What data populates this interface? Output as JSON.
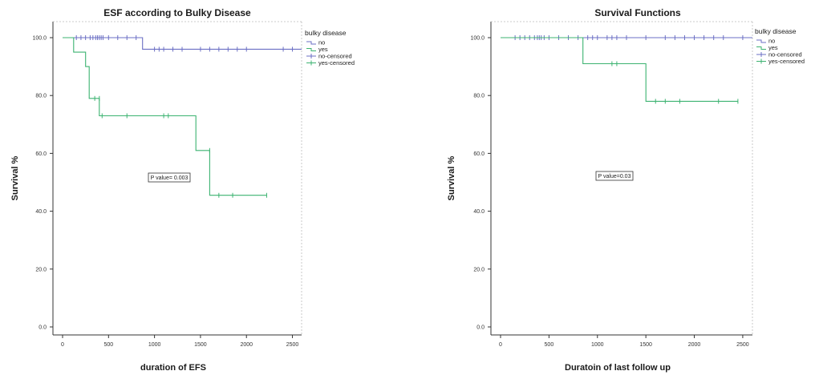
{
  "chart_data": [
    {
      "type": "line",
      "title": "ESF according to Bulky Disease",
      "xlabel": "duration of EFS",
      "ylabel": "Survival %",
      "xlim": [
        0,
        2600
      ],
      "ylim": [
        0,
        100
      ],
      "x_ticks": [
        0,
        500,
        1000,
        1500,
        2000,
        2500
      ],
      "y_ticks": [
        0,
        20,
        40,
        60,
        80,
        100
      ],
      "y_tick_labels": [
        "0.0",
        "20.0",
        "40.0",
        "60.0",
        "80.0",
        "100.0"
      ],
      "legend_title": "bulky disease",
      "legend_placement": "right",
      "legend": [
        "no",
        "yes",
        "no-censored",
        "yes-censored"
      ],
      "annotation": "P value= 0.003",
      "series": [
        {
          "name": "no",
          "color": "#6b6fc4",
          "x": [
            0,
            870,
            870,
            2600
          ],
          "y": [
            100,
            100,
            96,
            96
          ],
          "censored_x": [
            150,
            200,
            250,
            300,
            330,
            360,
            380,
            400,
            420,
            440,
            500,
            600,
            700,
            800,
            1000,
            1050,
            1100,
            1200,
            1300,
            1500,
            1600,
            1700,
            1800,
            1900,
            2000,
            2400,
            2500
          ],
          "censored_y": [
            100,
            100,
            100,
            100,
            100,
            100,
            100,
            100,
            100,
            100,
            100,
            100,
            100,
            100,
            96,
            96,
            96,
            96,
            96,
            96,
            96,
            96,
            96,
            96,
            96,
            96,
            96
          ]
        },
        {
          "name": "yes",
          "color": "#3cb371",
          "x": [
            0,
            120,
            120,
            250,
            250,
            290,
            290,
            400,
            400,
            1450,
            1450,
            1600,
            1600,
            2220
          ],
          "y": [
            100,
            100,
            95,
            95,
            90,
            90,
            79,
            79,
            73,
            73,
            61,
            61,
            45.5,
            45.5
          ],
          "censored_x": [
            350,
            400,
            430,
            700,
            1100,
            1150,
            1600,
            1700,
            1850,
            2220
          ],
          "censored_y": [
            79,
            79,
            73,
            73,
            73,
            73,
            61,
            45.5,
            45.5,
            45.5
          ]
        }
      ]
    },
    {
      "type": "line",
      "title": "Survival Functions",
      "xlabel": "Duratoin of last follow up",
      "ylabel": "Survival %",
      "xlim": [
        0,
        2600
      ],
      "ylim": [
        0,
        100
      ],
      "x_ticks": [
        0,
        500,
        1000,
        1500,
        2000,
        2500
      ],
      "y_ticks": [
        0,
        20,
        40,
        60,
        80,
        100
      ],
      "y_tick_labels": [
        "0.0",
        "20.0",
        "40.0",
        "60.0",
        "80.0",
        "100.0"
      ],
      "legend_title": "bulky disease",
      "legend_placement": "right",
      "legend": [
        "no",
        "yes",
        "no-censored",
        "yes-censored"
      ],
      "annotation": "P value=0.03",
      "series": [
        {
          "name": "no",
          "color": "#6b6fc4",
          "x": [
            0,
            2600
          ],
          "y": [
            100,
            100
          ],
          "censored_x": [
            150,
            200,
            250,
            300,
            350,
            380,
            400,
            420,
            450,
            500,
            600,
            700,
            800,
            900,
            950,
            1000,
            1100,
            1150,
            1200,
            1300,
            1500,
            1700,
            1800,
            1900,
            2000,
            2100,
            2200,
            2300,
            2500
          ],
          "censored_y": [
            100,
            100,
            100,
            100,
            100,
            100,
            100,
            100,
            100,
            100,
            100,
            100,
            100,
            100,
            100,
            100,
            100,
            100,
            100,
            100,
            100,
            100,
            100,
            100,
            100,
            100,
            100,
            100,
            100
          ]
        },
        {
          "name": "yes",
          "color": "#3cb371",
          "x": [
            0,
            850,
            850,
            1500,
            1500,
            2450
          ],
          "y": [
            100,
            100,
            91,
            91,
            78,
            78
          ],
          "censored_x": [
            1150,
            1200,
            1600,
            1700,
            1850,
            2250,
            2450
          ],
          "censored_y": [
            91,
            91,
            78,
            78,
            78,
            78,
            78
          ]
        }
      ]
    }
  ]
}
